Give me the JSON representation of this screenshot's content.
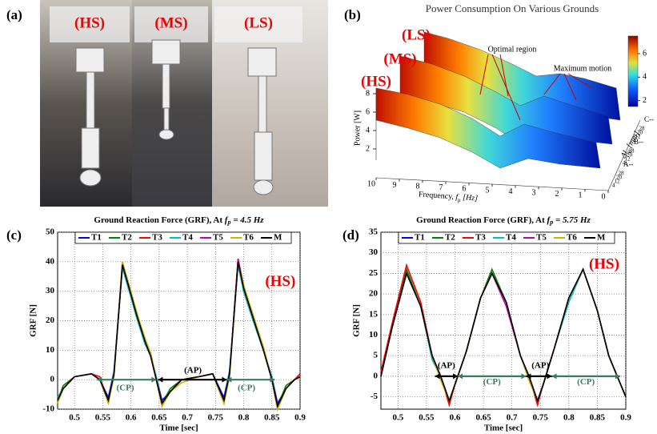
{
  "figure": {
    "panel_labels": [
      "(a)",
      "(b)",
      "(c)",
      "(d)"
    ],
    "photo_labels": [
      "(HS)",
      "(MS)",
      "(LS)"
    ]
  },
  "chart_data": [
    {
      "type": "surface",
      "title": "Power Consumption On Various Grounds",
      "ground_labels": [
        "(LS)",
        "(MS)",
        "(HS)"
      ],
      "annotations": [
        "Optimal region",
        "Maximum motion"
      ],
      "zlabel": "Power [W]",
      "zlim": [
        2,
        8
      ],
      "zticks": [
        2,
        4,
        6,
        8
      ],
      "xlabel": "Frequency, ",
      "xlabel_var": "f",
      "xlabel_sub": "p",
      "xlabel_unit": " [Hz]",
      "xlim": [
        10,
        0
      ],
      "xticks": [
        10,
        9,
        8,
        7,
        6,
        5,
        4,
        3,
        2,
        1,
        0
      ],
      "ylabel": "Δl",
      "ylabel_sub": "0",
      "ylabel_unit": " [mm]",
      "ygroups": [
        "A--",
        "B--",
        "C--"
      ],
      "yticks": [
        4,
        12,
        20,
        28
      ],
      "clim": [
        1.5,
        7.5
      ],
      "cticks": [
        2,
        4,
        6
      ]
    },
    {
      "type": "line",
      "title": "Ground Reaction Force (GRF), At ",
      "title_var": "f",
      "title_sub": "p",
      "title_value": " = 4.5 Hz",
      "xlabel": "Time [sec]",
      "ylabel": "GRF [N]",
      "x": [
        0.47,
        0.48,
        0.5,
        0.53,
        0.545,
        0.56,
        0.57,
        0.585,
        0.597,
        0.61,
        0.625,
        0.635,
        0.645,
        0.655,
        0.67,
        0.69,
        0.72,
        0.745,
        0.765,
        0.775,
        0.79,
        0.8,
        0.815,
        0.835,
        0.85,
        0.86,
        0.875,
        0.89,
        0.9
      ],
      "xlim": [
        0.47,
        0.9
      ],
      "xticks": [
        0.5,
        0.55,
        0.6,
        0.65,
        0.7,
        0.75,
        0.8,
        0.85,
        0.9
      ],
      "ylim": [
        -10,
        50
      ],
      "yticks": [
        -10,
        0,
        10,
        20,
        30,
        40,
        50
      ],
      "grid": true,
      "annotations": [
        "(AP)",
        "(CP)",
        "(CP)",
        "(HS)"
      ],
      "series": [
        {
          "name": "T1",
          "color": "#0000ff",
          "values": [
            -6,
            -3,
            1,
            2,
            0,
            -6,
            3,
            38,
            30,
            22,
            13,
            8,
            1,
            -7,
            -4,
            0,
            1,
            2,
            -6,
            3,
            39,
            30,
            21,
            10,
            1,
            -8,
            -3,
            0,
            1
          ]
        },
        {
          "name": "T2",
          "color": "#008000",
          "values": [
            -7,
            -2,
            1,
            2,
            0,
            -7,
            2,
            39,
            31,
            23,
            13,
            9,
            0,
            -8,
            -3,
            0,
            1,
            2,
            -7,
            2,
            40,
            31,
            22,
            11,
            0,
            -9,
            -2,
            0,
            1
          ]
        },
        {
          "name": "T3",
          "color": "#ff0000",
          "values": [
            -7,
            -3,
            1,
            2,
            1,
            -8,
            2,
            40,
            31,
            22,
            14,
            8,
            0,
            -9,
            -4,
            0,
            1,
            2,
            -8,
            2,
            41,
            32,
            22,
            10,
            0,
            -10,
            -3,
            0,
            2
          ]
        },
        {
          "name": "T4",
          "color": "#00bfbf",
          "values": [
            -6,
            -3,
            1,
            2,
            0,
            -7,
            3,
            38,
            30,
            21,
            12,
            8,
            1,
            -8,
            -4,
            0,
            1,
            2,
            -7,
            3,
            39,
            30,
            21,
            10,
            1,
            -9,
            -3,
            0,
            1
          ]
        },
        {
          "name": "T5",
          "color": "#bf00bf",
          "values": [
            -7,
            -3,
            1,
            2,
            0,
            -7,
            2,
            39,
            31,
            22,
            13,
            8,
            0,
            -8,
            -4,
            0,
            1,
            2,
            -7,
            2,
            41,
            31,
            22,
            10,
            0,
            -9,
            -3,
            0,
            1
          ]
        },
        {
          "name": "T6",
          "color": "#d4b000",
          "values": [
            -8,
            -3,
            1,
            2,
            0,
            -8,
            1,
            40,
            32,
            23,
            14,
            9,
            0,
            -9,
            -4,
            -1,
            1,
            2,
            -8,
            1,
            40,
            32,
            23,
            11,
            0,
            -10,
            -3,
            0,
            1
          ]
        },
        {
          "name": "M",
          "color": "#000000",
          "values": [
            -7,
            -3,
            1,
            2,
            0,
            -7,
            2,
            39,
            31,
            22,
            13,
            8,
            0,
            -8,
            -4,
            0,
            1,
            2,
            -7,
            2,
            40,
            31,
            22,
            10,
            0,
            -9,
            -3,
            0,
            1
          ]
        }
      ]
    },
    {
      "type": "line",
      "title": "Ground Reaction Force (GRF), At ",
      "title_var": "f",
      "title_sub": "p",
      "title_value": " = 5.75 Hz",
      "xlabel": "Time [sec]",
      "ylabel": "GRF [N]",
      "x": [
        0.47,
        0.49,
        0.515,
        0.54,
        0.56,
        0.575,
        0.59,
        0.6,
        0.62,
        0.645,
        0.665,
        0.69,
        0.715,
        0.73,
        0.745,
        0.755,
        0.775,
        0.8,
        0.825,
        0.85,
        0.87,
        0.885,
        0.9
      ],
      "xlim": [
        0.47,
        0.9
      ],
      "xticks": [
        0.5,
        0.55,
        0.6,
        0.65,
        0.7,
        0.75,
        0.8,
        0.85,
        0.9
      ],
      "ylim": [
        -8,
        35
      ],
      "yticks": [
        -5,
        0,
        5,
        10,
        15,
        20,
        25,
        30,
        35
      ],
      "grid": true,
      "annotations": [
        "(AP)",
        "(AP)",
        "(CP)",
        "(CP)",
        "(HS)"
      ],
      "series": [
        {
          "name": "T1",
          "color": "#0000ff",
          "values": [
            0,
            12,
            25,
            17,
            5,
            0,
            -6,
            -2,
            6,
            19,
            25,
            18,
            5,
            0,
            -6,
            -2,
            7,
            19,
            26,
            16,
            5,
            0,
            -5
          ]
        },
        {
          "name": "T2",
          "color": "#008000",
          "values": [
            0,
            12,
            26,
            17,
            5,
            0,
            -6,
            -2,
            6,
            19,
            26,
            18,
            5,
            0,
            -6,
            -2,
            7,
            19,
            26,
            16,
            5,
            0,
            -5
          ]
        },
        {
          "name": "T3",
          "color": "#ff0000",
          "values": [
            1,
            13,
            27,
            18,
            5,
            0,
            -7,
            -2,
            6,
            19,
            25,
            18,
            5,
            0,
            -7,
            -2,
            7,
            19,
            26,
            16,
            5,
            0,
            -5
          ]
        },
        {
          "name": "T4",
          "color": "#00bfbf",
          "values": [
            0,
            12,
            25,
            17,
            4,
            0,
            -6,
            -2,
            6,
            19,
            25,
            18,
            5,
            0,
            -6,
            -2,
            7,
            18,
            26,
            16,
            5,
            0,
            -5
          ]
        },
        {
          "name": "T5",
          "color": "#bf00bf",
          "values": [
            0,
            12,
            25,
            17,
            5,
            0,
            -6,
            -2,
            6,
            19,
            25,
            17,
            5,
            0,
            -6,
            -2,
            7,
            19,
            26,
            16,
            5,
            0,
            -5
          ]
        },
        {
          "name": "T6",
          "color": "#d4b000",
          "values": [
            0,
            12,
            25,
            17,
            5,
            -1,
            -6,
            -2,
            6,
            19,
            25,
            18,
            5,
            -1,
            -6,
            -2,
            7,
            19,
            26,
            16,
            5,
            0,
            -5
          ]
        },
        {
          "name": "M",
          "color": "#000000",
          "values": [
            0,
            12,
            25,
            17,
            5,
            0,
            -6,
            -2,
            6,
            19,
            25,
            18,
            5,
            0,
            -6,
            -2,
            7,
            19,
            26,
            16,
            5,
            0,
            -5
          ]
        }
      ]
    }
  ]
}
